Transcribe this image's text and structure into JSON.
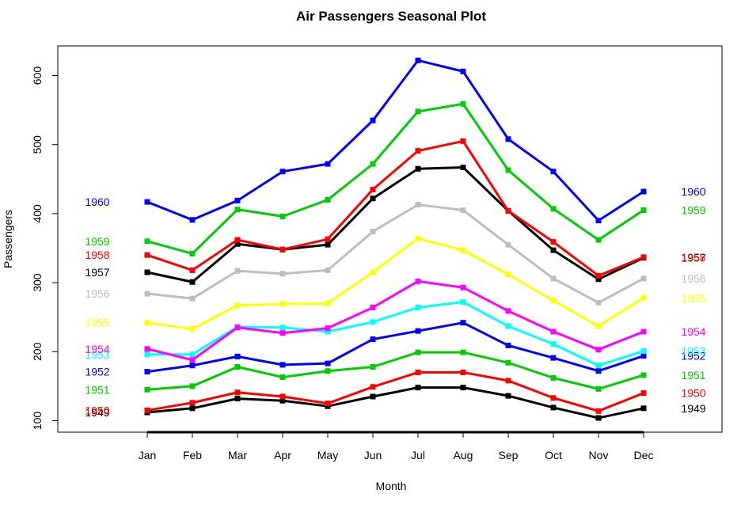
{
  "chart_data": {
    "type": "line",
    "title": "Air Passengers Seasonal Plot",
    "xlabel": "Month",
    "ylabel": "Passengers",
    "categories": [
      "Jan",
      "Feb",
      "Mar",
      "Apr",
      "May",
      "Jun",
      "Jul",
      "Aug",
      "Sep",
      "Oct",
      "Nov",
      "Dec"
    ],
    "yticks": [
      100,
      200,
      300,
      400,
      500,
      600
    ],
    "ylim": [
      85,
      640
    ],
    "grid": false,
    "legend": "year labels at left and right ends of each line",
    "series": [
      {
        "name": "1949",
        "color": "#000000",
        "values": [
          112,
          118,
          132,
          129,
          121,
          135,
          148,
          148,
          136,
          119,
          104,
          118
        ]
      },
      {
        "name": "1950",
        "color": "#FF0000",
        "values": [
          115,
          126,
          141,
          135,
          125,
          149,
          170,
          170,
          158,
          133,
          114,
          140
        ]
      },
      {
        "name": "1951",
        "color": "#00CD00",
        "values": [
          145,
          150,
          178,
          163,
          172,
          178,
          199,
          199,
          184,
          162,
          146,
          166
        ]
      },
      {
        "name": "1952",
        "color": "#0000FF",
        "values": [
          171,
          180,
          193,
          181,
          183,
          218,
          230,
          242,
          209,
          191,
          172,
          194
        ]
      },
      {
        "name": "1953",
        "color": "#00FFFF",
        "values": [
          196,
          196,
          236,
          235,
          229,
          243,
          264,
          272,
          237,
          211,
          180,
          201
        ]
      },
      {
        "name": "1954",
        "color": "#FF00FF",
        "values": [
          204,
          188,
          235,
          227,
          234,
          264,
          302,
          293,
          259,
          229,
          203,
          229
        ]
      },
      {
        "name": "1955",
        "color": "#FFFF00",
        "values": [
          242,
          233,
          267,
          269,
          270,
          315,
          364,
          347,
          312,
          274,
          237,
          278
        ]
      },
      {
        "name": "1956",
        "color": "#BEBEBE",
        "values": [
          284,
          277,
          317,
          313,
          318,
          374,
          413,
          405,
          355,
          306,
          271,
          306
        ]
      },
      {
        "name": "1957",
        "color": "#000000",
        "values": [
          315,
          301,
          356,
          348,
          355,
          422,
          465,
          467,
          404,
          347,
          305,
          336
        ]
      },
      {
        "name": "1958",
        "color": "#FF0000",
        "values": [
          340,
          318,
          362,
          348,
          363,
          435,
          491,
          505,
          404,
          359,
          310,
          337
        ]
      },
      {
        "name": "1959",
        "color": "#00CD00",
        "values": [
          360,
          342,
          406,
          396,
          420,
          472,
          548,
          559,
          463,
          407,
          362,
          405
        ]
      },
      {
        "name": "1960",
        "color": "#0000FF",
        "values": [
          417,
          391,
          419,
          461,
          472,
          535,
          622,
          606,
          508,
          461,
          390,
          432
        ]
      }
    ]
  }
}
